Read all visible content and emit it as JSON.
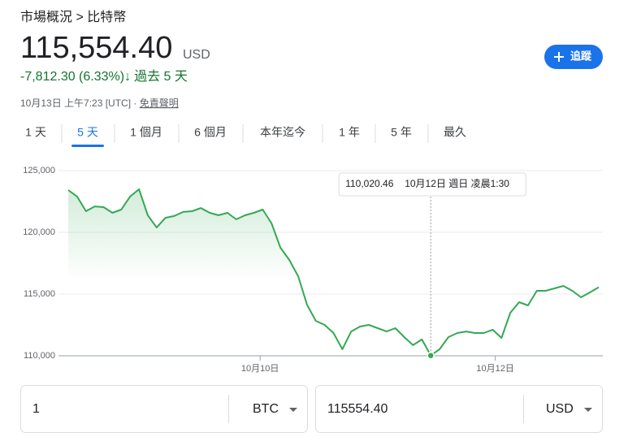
{
  "header": {
    "breadcrumb": "市場概況 > 比特幣",
    "price": "115,554.40",
    "currency": "USD",
    "change": "-7,812.30 (6.33%)",
    "change_arrow": "↓",
    "period": "過去 5 天",
    "follow": "追蹤",
    "timestamp": "10月13日 上午7:23 [UTC] · ",
    "disclaimer": "免責聲明"
  },
  "tabs": {
    "items": [
      "1 天",
      "5 天",
      "1 個月",
      "6 個月",
      "本年迄今",
      "1 年",
      "5 年",
      "最久"
    ],
    "selected": 1
  },
  "chart_data": {
    "type": "line",
    "color": "#34a853",
    "values": [
      123420,
      122900,
      121710,
      122100,
      122040,
      121580,
      121840,
      122900,
      123490,
      121380,
      120390,
      121180,
      121320,
      121650,
      121710,
      121970,
      121580,
      121380,
      121580,
      121050,
      121380,
      121580,
      121840,
      120720,
      118750,
      117760,
      116450,
      114140,
      112830,
      112500,
      111840,
      110530,
      111970,
      112370,
      112500,
      112240,
      111970,
      112240,
      111510,
      110860,
      111320,
      110020.46,
      110530,
      111510,
      111840,
      111970,
      111840,
      111840,
      112110,
      111450,
      113490,
      114340,
      114080,
      115260,
      115260,
      115460,
      115660,
      115260,
      114740,
      115130,
      115554.4
    ],
    "xlim": [
      0,
      60
    ],
    "xticks": [
      {
        "value": 21.7,
        "label": "10月10日"
      },
      {
        "value": 48.3,
        "label": "10月12日"
      }
    ],
    "ylim": [
      110000,
      125000
    ],
    "yticks": [
      {
        "value": 110000,
        "label": "110,000"
      },
      {
        "value": 115000,
        "label": "115,000"
      },
      {
        "value": 120000,
        "label": "120,000"
      },
      {
        "value": 125000,
        "label": "125,000"
      }
    ],
    "grid": true,
    "tooltip": {
      "price": "110,020.46",
      "time": "10月12日 週日 凌晨1:30"
    }
  },
  "converter": {
    "left": {
      "amount": "1",
      "unit": "BTC"
    },
    "right": {
      "amount": "115554.40",
      "unit": "USD"
    }
  }
}
